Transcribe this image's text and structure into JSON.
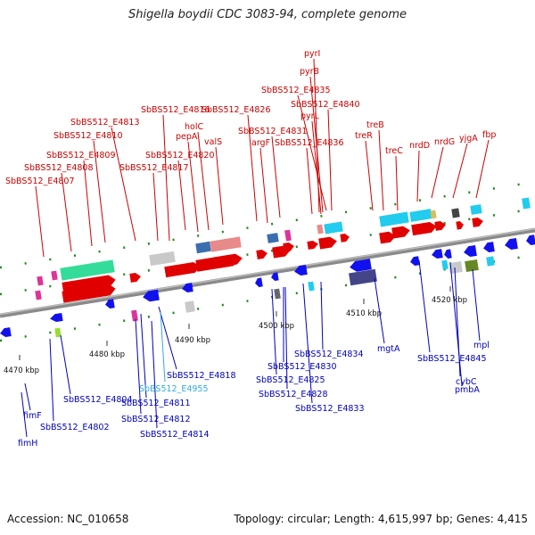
{
  "title": "Shigella boydii CDC 3083-94, complete genome",
  "footer": {
    "accession": "Accession: NC_010658",
    "summary": "Topology: circular; Length: 4,615,997 bp; Genes: 4,415"
  },
  "scale_ticks": [
    "4470 kbp",
    "4480 kbp",
    "4490 kbp",
    "4500 kbp",
    "4510 kbp",
    "4520 kbp"
  ],
  "colors": {
    "forward_label": "#cc0000",
    "reverse_label": "#0000bb",
    "highlight_label": "#33aadd",
    "backbone": "#888888"
  },
  "top_labels": [
    "pyrI",
    "pyrB",
    "SbBS512_E4835",
    "SbBS512_E4840",
    "pyrL",
    "treB",
    "SbBS512_E4816",
    "SbBS512_E4826",
    "SbBS512_E4813",
    "holC",
    "SbBS512_E4831",
    "SbBS512_E4836",
    "treR",
    "treC",
    "nrdD",
    "nrdG",
    "yjgA",
    "fbp",
    "SbBS512_E4810",
    "pepA",
    "valS",
    "argF",
    "SbBS512_E4809",
    "SbBS512_E4820",
    "SbBS512_E4808",
    "SbBS512_E4817",
    "SbBS512_E4807"
  ],
  "bottom_labels": [
    "mgtA",
    "SbBS512_E4834",
    "SbBS512_E4845",
    "mpl",
    "SbBS512_E4818",
    "SbBS512_E4830",
    "cybC",
    "SbBS512_E4825",
    "SbBS512_E4955",
    "SbBS512_E4828",
    "pmbA",
    "SbBS512_E4804",
    "SbBS512_E4811",
    "SbBS512_E4833",
    "fimF",
    "SbBS512_E4812",
    "SbBS512_E4802",
    "SbBS512_E4814",
    "fimH"
  ]
}
